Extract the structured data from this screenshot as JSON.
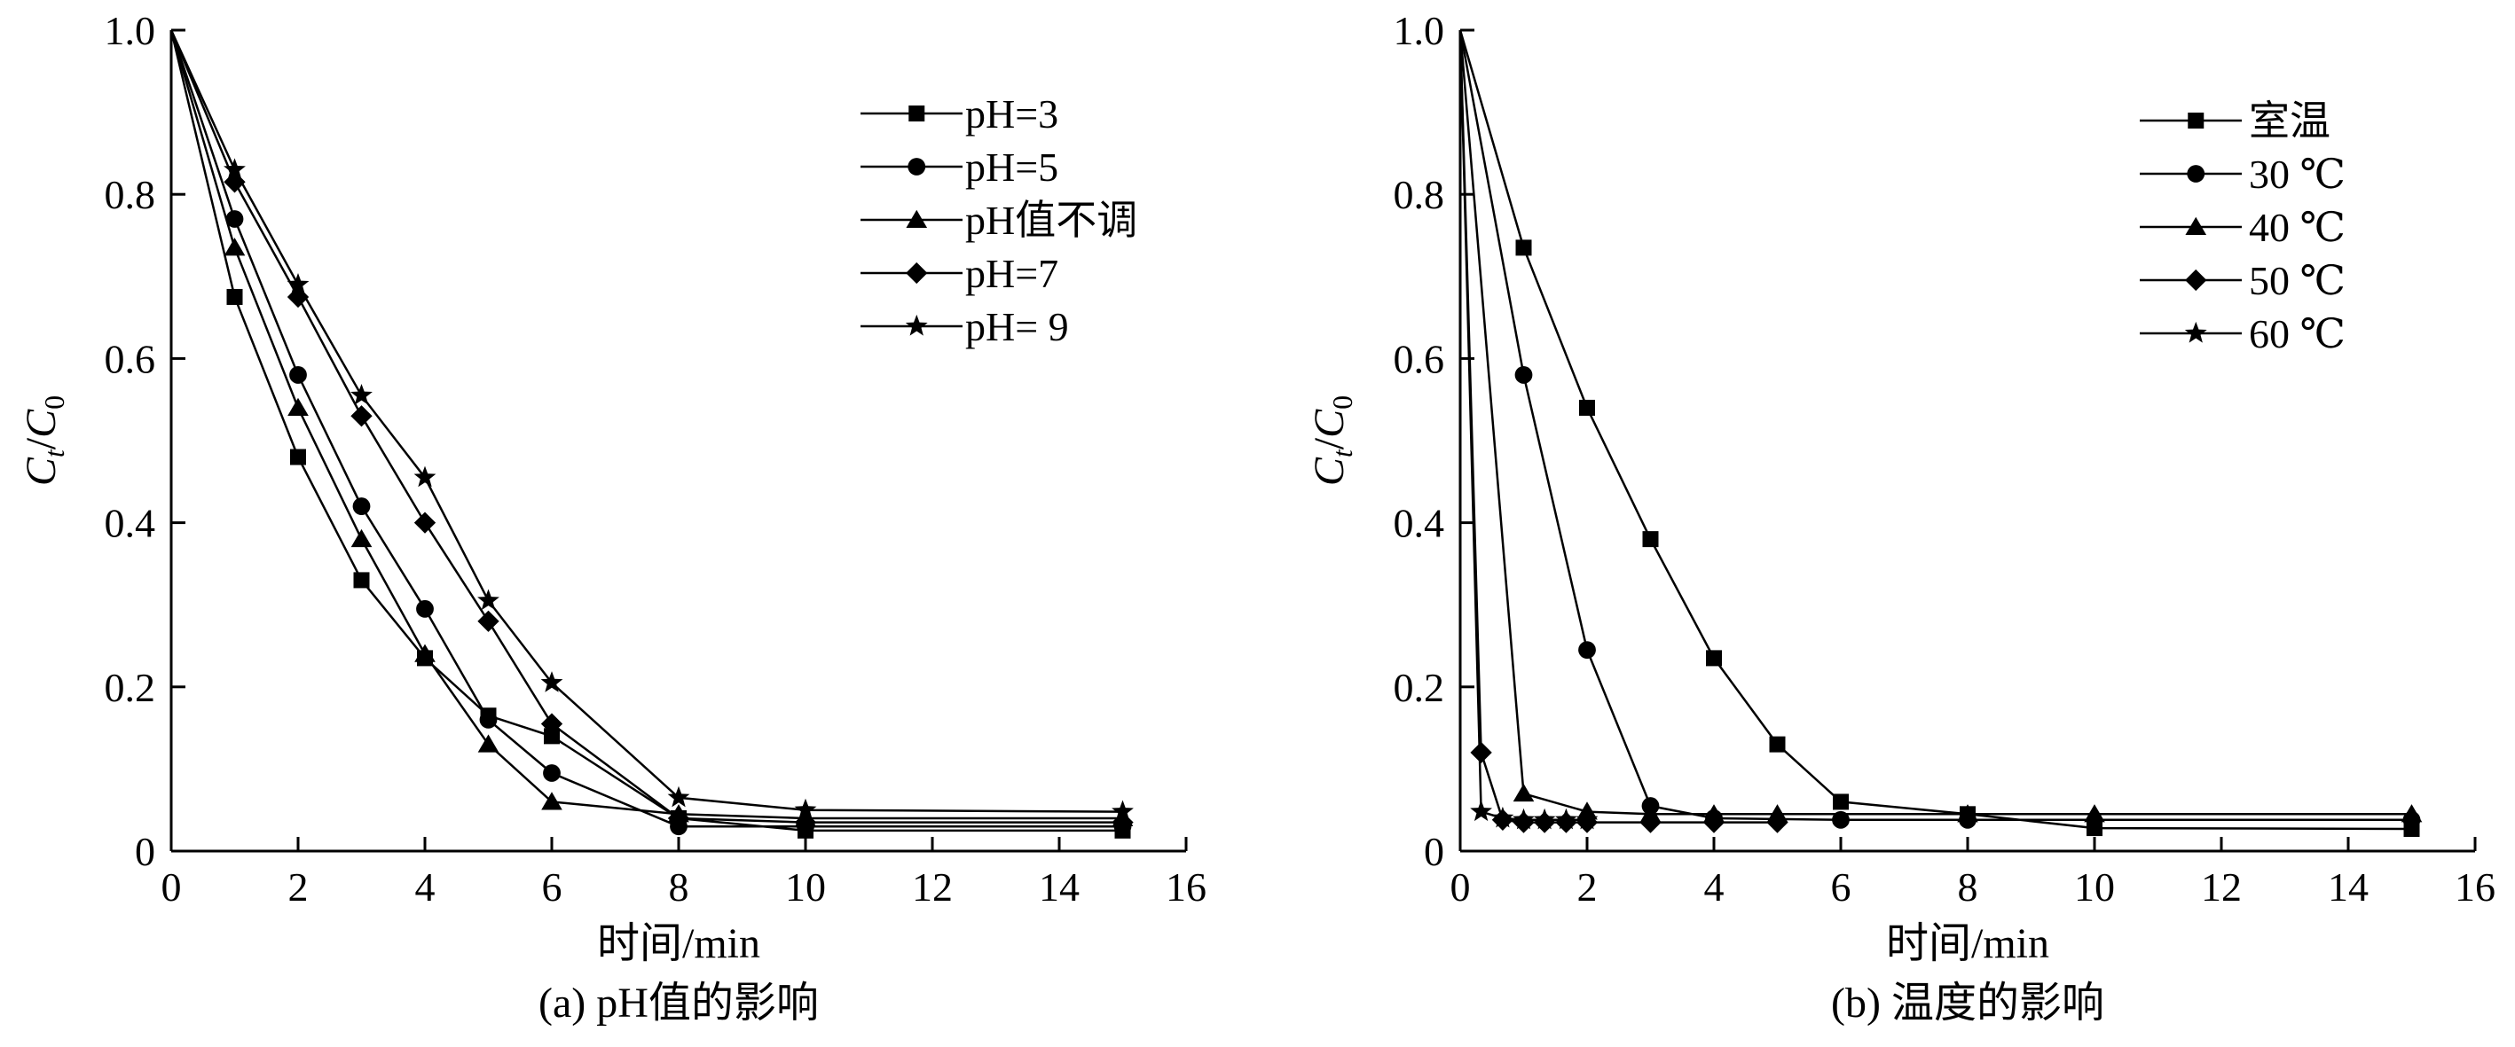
{
  "chart_data": [
    {
      "type": "line",
      "caption": "(a) pH值的影响",
      "xlabel": "时间/min",
      "ylabel": "Ct/C0",
      "xlim": [
        0,
        16
      ],
      "ylim": [
        0,
        1.0
      ],
      "xticks": [
        "0",
        "2",
        "4",
        "6",
        "8",
        "10",
        "12",
        "14",
        "16"
      ],
      "yticks": [
        "0",
        "0.2",
        "0.4",
        "0.6",
        "0.8",
        "1.0"
      ],
      "legend_position": "top-right",
      "series": [
        {
          "name": "pH=3",
          "marker": "square",
          "x": [
            0,
            1,
            2,
            3,
            4,
            5,
            6,
            8,
            10,
            15
          ],
          "y": [
            1.0,
            0.675,
            0.48,
            0.33,
            0.235,
            0.165,
            0.14,
            0.04,
            0.025,
            0.025
          ]
        },
        {
          "name": "pH=5",
          "marker": "circle",
          "x": [
            0,
            1,
            2,
            3,
            4,
            5,
            6,
            8,
            10,
            15
          ],
          "y": [
            1.0,
            0.77,
            0.58,
            0.42,
            0.295,
            0.16,
            0.095,
            0.03,
            0.03,
            0.03
          ]
        },
        {
          "name": "pH值不调",
          "marker": "triangle",
          "x": [
            0,
            1,
            2,
            3,
            4,
            5,
            6,
            8,
            10,
            15
          ],
          "y": [
            1.0,
            0.735,
            0.54,
            0.38,
            0.24,
            0.13,
            0.06,
            0.045,
            0.04,
            0.04
          ]
        },
        {
          "name": "pH=7",
          "marker": "diamond",
          "x": [
            0,
            1,
            2,
            3,
            4,
            5,
            6,
            8,
            10,
            15
          ],
          "y": [
            1.0,
            0.815,
            0.675,
            0.53,
            0.4,
            0.28,
            0.155,
            0.04,
            0.035,
            0.035
          ]
        },
        {
          "name": "pH= 9",
          "marker": "star",
          "x": [
            0,
            1,
            2,
            3,
            4,
            5,
            6,
            8,
            10,
            15
          ],
          "y": [
            1.0,
            0.83,
            0.69,
            0.555,
            0.455,
            0.305,
            0.205,
            0.065,
            0.05,
            0.048
          ]
        }
      ]
    },
    {
      "type": "line",
      "caption": "(b) 温度的影响",
      "xlabel": "时间/min",
      "ylabel": "Ct/C0",
      "xlim": [
        0,
        16
      ],
      "ylim": [
        0,
        1.0
      ],
      "xticks": [
        "0",
        "2",
        "4",
        "6",
        "8",
        "10",
        "12",
        "14",
        "16"
      ],
      "yticks": [
        "0",
        "0.2",
        "0.4",
        "0.6",
        "0.8",
        "1.0"
      ],
      "legend_position": "top-right",
      "series": [
        {
          "name": "室温",
          "marker": "square",
          "x": [
            0,
            1,
            2,
            3,
            4,
            5,
            6,
            8,
            10,
            15
          ],
          "y": [
            1.0,
            0.735,
            0.54,
            0.38,
            0.235,
            0.13,
            0.06,
            0.045,
            0.028,
            0.027
          ]
        },
        {
          "name": "30 ℃",
          "marker": "circle",
          "x": [
            0,
            1,
            2,
            3,
            4,
            6,
            8,
            15
          ],
          "y": [
            1.0,
            0.58,
            0.245,
            0.055,
            0.04,
            0.038,
            0.038,
            0.038
          ]
        },
        {
          "name": "40 ℃",
          "marker": "triangle",
          "x": [
            0,
            1,
            2,
            3,
            4,
            5,
            8,
            10,
            15
          ],
          "y": [
            1.0,
            0.07,
            0.048,
            0.045,
            0.045,
            0.045,
            0.045,
            0.045,
            0.045
          ]
        },
        {
          "name": "50 ℃",
          "marker": "diamond",
          "x": [
            0,
            0.33,
            0.67,
            1,
            1.33,
            1.67,
            2,
            3,
            4,
            5
          ],
          "y": [
            1.0,
            0.12,
            0.038,
            0.035,
            0.035,
            0.035,
            0.035,
            0.035,
            0.035,
            0.035
          ]
        },
        {
          "name": "60 ℃",
          "marker": "star",
          "x": [
            0,
            0.33,
            0.67,
            1,
            1.33,
            1.67,
            2
          ],
          "y": [
            1.0,
            0.048,
            0.04,
            0.038,
            0.038,
            0.038,
            0.038
          ]
        }
      ]
    }
  ]
}
